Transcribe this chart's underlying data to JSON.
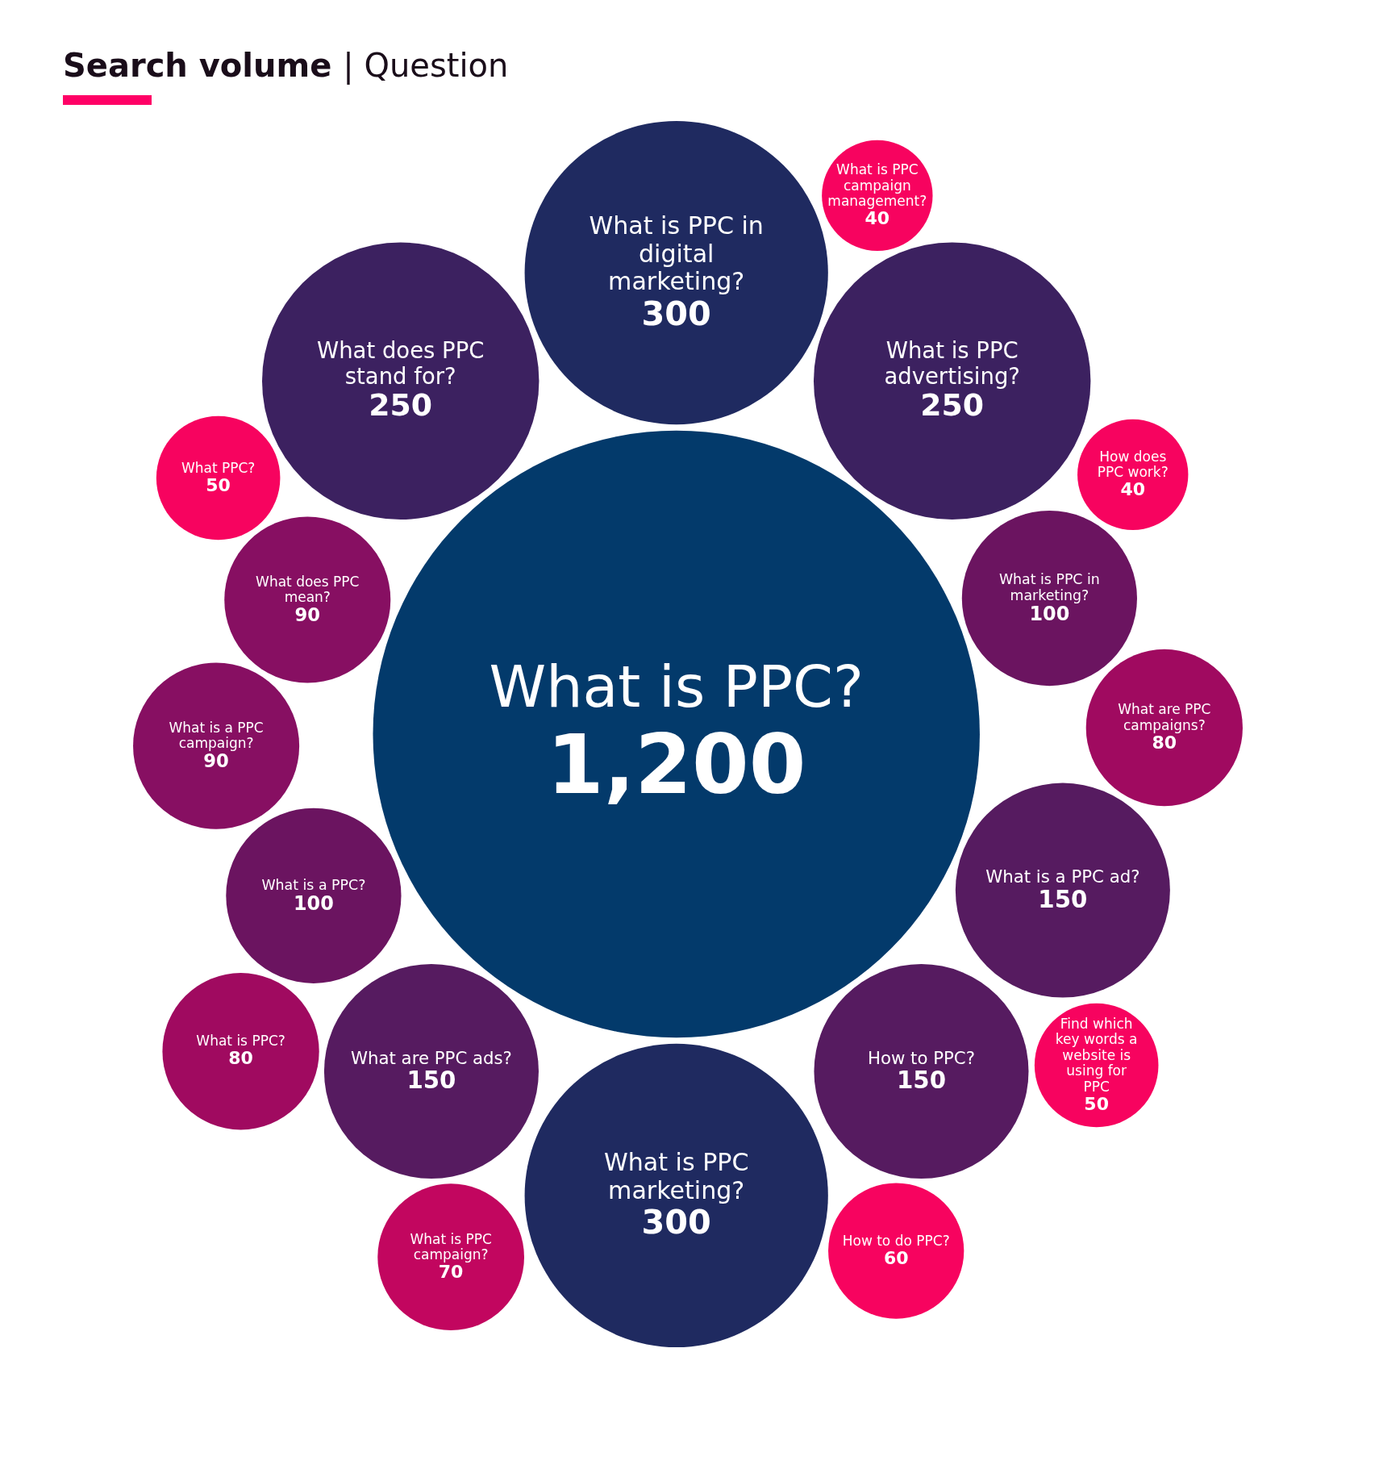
{
  "chart_data": {
    "type": "other",
    "title": "Search volume | Question",
    "categories": [
      "What is PPC?",
      "What is PPC in digital marketing?",
      "What is PPC marketing?",
      "What is PPC advertising?",
      "What does PPC stand for?",
      "What are PPC ads?",
      "How to PPC?",
      "What is a PPC ad?",
      "What is a PPC?",
      "What is PPC in marketing?",
      "What does PPC mean?",
      "What is a PPC campaign?",
      "What are PPC campaigns?",
      "What is PPC?",
      "What is PPC campaign?",
      "How to do PPC?",
      "What PPC?",
      "Find which key words a website is using for PPC",
      "How does PPC work?",
      "What is PPC campaign management?"
    ],
    "values": [
      1200,
      300,
      300,
      250,
      250,
      150,
      150,
      150,
      100,
      100,
      90,
      90,
      80,
      80,
      70,
      60,
      50,
      50,
      40,
      40
    ],
    "value_labels": [
      "1,200",
      "300",
      "300",
      "250",
      "250",
      "150",
      "150",
      "150",
      "100",
      "100",
      "90",
      "90",
      "80",
      "80",
      "70",
      "60",
      "50",
      "50",
      "40",
      "40"
    ],
    "colors": [
      "#033a6b",
      "#1f2a60",
      "#1f2a60",
      "#3c2160",
      "#3c2160",
      "#561b60",
      "#561b60",
      "#561b60",
      "#6b1460",
      "#6b1460",
      "#870f62",
      "#870f62",
      "#a00a60",
      "#a00a60",
      "#c2065f",
      "#f7035f",
      "#f7035f",
      "#f7035f",
      "#f7035f",
      "#f7035f"
    ]
  }
}
